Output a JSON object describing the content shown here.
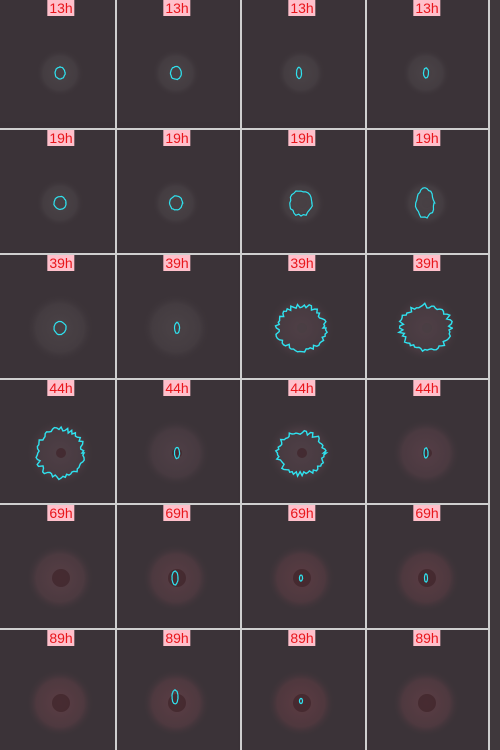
{
  "rows": [
    {
      "label": "13h"
    },
    {
      "label": "19h"
    },
    {
      "label": "39h"
    },
    {
      "label": "44h"
    },
    {
      "label": "69h"
    },
    {
      "label": "89h"
    }
  ],
  "colors": {
    "background": "#3a3237",
    "grid": "#cfcfcf",
    "label_bg": "#ffc0cb",
    "label_text": "#e8151b",
    "contour": "#2fe3f0"
  }
}
